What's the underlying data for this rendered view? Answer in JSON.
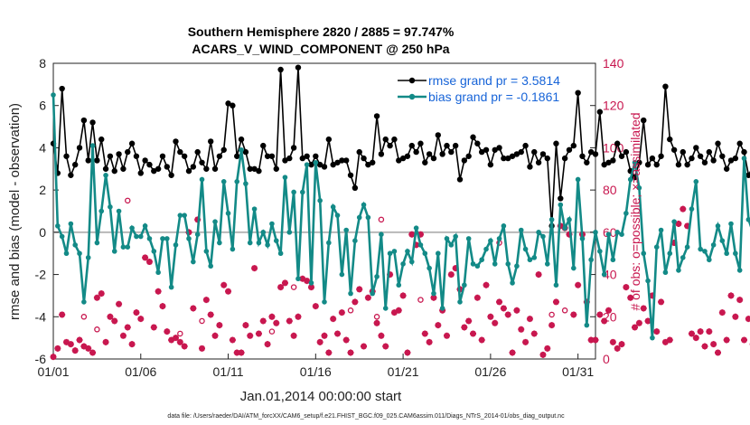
{
  "chart_data": {
    "type": "line",
    "title_line1": "Southern Hemisphere 2820 / 2885 = 97.747%",
    "title_line2": "ACARS_V_WIND_COMPONENT @ 250 hPa",
    "xlabel": "Jan.01,2014 00:00:00 start",
    "ylabel": "rmse and bias (model - observation)",
    "ylabel_right": "# of obs: o=possible; ×=assimilated",
    "footer": "data file: /Users/raeder/DAI/ATM_forcXX/CAM6_setup/f.e21.FHIST_BGC.f09_025.CAM6assim.011/Diags_NTrS_2014-01/obs_diag_output.nc",
    "xlim": [
      0,
      31
    ],
    "ylim": [
      -6,
      8
    ],
    "ylim_right": [
      0,
      140
    ],
    "x_tick_positions": [
      0,
      5,
      10,
      15,
      20,
      25,
      30
    ],
    "x_tick_labels": [
      "01/01",
      "01/06",
      "01/11",
      "01/16",
      "01/21",
      "01/26",
      "01/31"
    ],
    "y_ticks": [
      -6,
      -4,
      -2,
      0,
      2,
      4,
      6,
      8
    ],
    "y_ticks_right": [
      0,
      20,
      40,
      60,
      80,
      100,
      120,
      140
    ],
    "grid": false,
    "legend_position": "top-right",
    "colors": {
      "rmse": "#000000",
      "bias": "#138a87",
      "obs": "#c8174f",
      "zero_line": "#b8b8b8",
      "legend_text": "#1764d8"
    },
    "x_step_days": 0.25,
    "series": [
      {
        "name": "rmse grand pr = 3.5814",
        "values": [
          4.2,
          2.8,
          6.8,
          3.6,
          2.7,
          3.2,
          4.0,
          5.3,
          3.4,
          5.2,
          3.4,
          4.4,
          3.0,
          3.6,
          2.9,
          3.7,
          3.0,
          3.8,
          4.2,
          3.6,
          2.8,
          3.4,
          3.2,
          2.9,
          3.0,
          3.6,
          3.1,
          2.7,
          4.3,
          3.8,
          3.6,
          2.9,
          3.1,
          3.8,
          3.3,
          3.0,
          4.3,
          3.0,
          3.6,
          3.9,
          6.1,
          6.0,
          3.6,
          4.4,
          3.8,
          3.0,
          3.0,
          2.9,
          4.1,
          3.6,
          3.6,
          3.0,
          7.7,
          3.4,
          3.5,
          4.0,
          7.8,
          3.5,
          3.6,
          3.2,
          3.6,
          3.2,
          3.1,
          4.4,
          3.2,
          3.3,
          3.4,
          3.4,
          2.7,
          2.1,
          3.8,
          3.5,
          3.2,
          3.3,
          5.5,
          3.7,
          4.4,
          4.1,
          4.4,
          3.4,
          3.5,
          3.6,
          4.1,
          3.8,
          4.2,
          3.3,
          3.7,
          3.5,
          4.6,
          3.7,
          4.1,
          3.8,
          4.1,
          2.5,
          3.4,
          3.6,
          4.5,
          4.2,
          3.8,
          3.9,
          3.2,
          3.9,
          4.0,
          3.5,
          3.5,
          3.6,
          3.7,
          3.8,
          4.1,
          3.1,
          3.8,
          3.3,
          3.7,
          3.5,
          0.3,
          4.2,
          1.6,
          3.5,
          3.9,
          4.1,
          6.6,
          3.6,
          3.3,
          3.8,
          3.7,
          5.7,
          3.2,
          3.3,
          3.4,
          4.2,
          3.6,
          3.8,
          2.9,
          2.6,
          3.3,
          5.3,
          3.2,
          3.5,
          3.2,
          3.6,
          6.9,
          4.4,
          3.9,
          3.2,
          3.8,
          3.2,
          3.5,
          4.0,
          3.6,
          3.3,
          3.8,
          3.4,
          4.2,
          3.6,
          3.0,
          3.4,
          3.5,
          4.2,
          3.8,
          2.7,
          3.1,
          4.3,
          3.9,
          3.4,
          4.1,
          3.6,
          2.9,
          3.2,
          4.8,
          3.1,
          2.8,
          4.3,
          3.5,
          4.5,
          3.3,
          4.3,
          4.5,
          3.1,
          3.4,
          4.0,
          3.9,
          4.0,
          3.9,
          3.2,
          3.7
        ]
      },
      {
        "name": "bias grand pr = -0.1861",
        "values": [
          6.5,
          0.3,
          -0.2,
          -1.0,
          0.4,
          -0.6,
          -1.0,
          -3.3,
          -1.2,
          4.1,
          -0.5,
          1.0,
          2.7,
          1.2,
          -0.9,
          1.0,
          -0.7,
          -0.7,
          0.2,
          -0.2,
          -0.2,
          0.3,
          -0.3,
          -0.9,
          -1.9,
          -0.3,
          -0.3,
          -2.6,
          -0.6,
          0.8,
          0.8,
          -0.3,
          -1.4,
          -0.1,
          2.5,
          -0.9,
          -1.6,
          0.5,
          -0.5,
          2.4,
          0.9,
          -0.8,
          2.4,
          3.9,
          2.3,
          -0.5,
          1.1,
          -0.5,
          0.0,
          -0.6,
          0.4,
          -0.4,
          -1.0,
          2.6,
          0.0,
          1.9,
          -2.2,
          1.9,
          3.2,
          -2.4,
          3.3,
          1.5,
          -3.3,
          -0.5,
          1.2,
          0.8,
          -2.0,
          0.1,
          -2.9,
          -0.4,
          0.7,
          1.3,
          0.7,
          -2.9,
          -2.1,
          -0.1,
          -3.6,
          -1.0,
          -0.9,
          -2.5,
          -1.5,
          -0.9,
          -1.4,
          0.2,
          -0.6,
          -1.0,
          -1.7,
          -2.9,
          -1.0,
          -3.6,
          -0.3,
          -0.6,
          -0.2,
          -3.3,
          -2.5,
          -0.3,
          -1.5,
          -1.6,
          -1.3,
          -0.8,
          -0.4,
          -1.5,
          -0.3,
          0.3,
          -1.5,
          -2.4,
          -1.6,
          0.1,
          -0.8,
          -1.3,
          -1.2,
          0.0,
          -0.2,
          -1.5,
          0.6,
          -2.5,
          1.3,
          0.2,
          0.6,
          -1.7,
          2.5,
          -0.3,
          -4.4,
          -1.3,
          0.0,
          -0.9,
          -2.0,
          -0.1,
          -1.3,
          0.0,
          -0.1,
          0.9,
          2.5,
          3.3,
          2.1,
          -1.0,
          -2.3,
          -5.0,
          -0.7,
          0.1,
          -1.9,
          -1.0,
          0.5,
          -1.8,
          -1.2,
          -0.7,
          1.1,
          2.4,
          -0.8,
          -0.9,
          -1.3,
          -0.6,
          0.3,
          -0.4,
          -1.0,
          0.4,
          -1.0,
          -1.8,
          3.5,
          0.6,
          0.0,
          -0.7,
          -1.3,
          0.5,
          -1.5,
          -1.4,
          1.6,
          -2.0,
          -0.8,
          1.0,
          -0.9,
          0.3,
          -0.6,
          0.0,
          3.1,
          0.7,
          2.9,
          0.9,
          -0.8,
          -2.0,
          -1.5,
          -1.3,
          0.2,
          0.2,
          0.2,
          -0.9,
          2.4
        ]
      }
    ],
    "obs_assimilated_count": [
      1,
      5,
      21,
      8,
      7,
      4,
      9,
      6,
      5,
      3,
      29,
      31,
      8,
      20,
      18,
      26,
      11,
      15,
      7,
      22,
      19,
      48,
      46,
      15,
      32,
      25,
      13,
      9,
      10,
      8,
      6,
      60,
      24,
      66,
      5,
      28,
      21,
      11,
      16,
      35,
      32,
      9,
      3,
      3,
      16,
      11,
      43,
      12,
      18,
      7,
      20,
      17,
      34,
      36,
      18,
      11,
      20,
      38,
      37,
      34,
      25,
      8,
      11,
      3,
      19,
      12,
      22,
      9,
      3,
      27,
      33,
      6,
      29,
      32,
      17,
      11,
      6,
      40,
      22,
      23,
      30,
      3,
      59,
      54,
      59,
      12,
      8,
      29,
      16,
      23,
      11,
      40,
      43,
      33,
      15,
      18,
      12,
      29,
      9,
      35,
      20,
      17,
      27,
      24,
      21,
      3,
      23,
      14,
      8,
      19,
      12,
      40,
      2,
      5,
      16,
      27,
      63,
      62,
      59,
      21,
      35,
      59,
      27,
      9,
      9,
      21,
      18,
      23,
      8,
      5,
      7,
      34,
      29,
      15,
      17,
      24,
      18,
      30,
      13,
      27,
      8,
      9,
      55,
      64,
      71,
      63,
      12,
      10,
      13,
      6,
      13,
      7,
      3,
      22,
      9,
      30,
      20,
      28,
      9,
      19,
      7,
      40,
      17,
      6,
      30,
      24,
      18,
      13,
      8,
      27,
      26,
      21,
      8,
      20,
      26,
      31,
      25,
      17,
      3,
      12,
      16,
      14,
      21,
      26,
      18,
      5
    ],
    "obs_possible_extra": [
      {
        "x": 1.75,
        "count": 20
      },
      {
        "x": 2.5,
        "count": 14
      },
      {
        "x": 4.25,
        "count": 75
      },
      {
        "x": 7.25,
        "count": 12
      },
      {
        "x": 8.5,
        "count": 18
      },
      {
        "x": 12.5,
        "count": 13
      },
      {
        "x": 13.75,
        "count": 34
      },
      {
        "x": 17.0,
        "count": 23
      },
      {
        "x": 18.5,
        "count": 20
      },
      {
        "x": 18.75,
        "count": 66
      },
      {
        "x": 21.0,
        "count": 28
      },
      {
        "x": 25.5,
        "count": 55
      },
      {
        "x": 28.5,
        "count": 21
      },
      {
        "x": 29.25,
        "count": 23
      }
    ]
  }
}
